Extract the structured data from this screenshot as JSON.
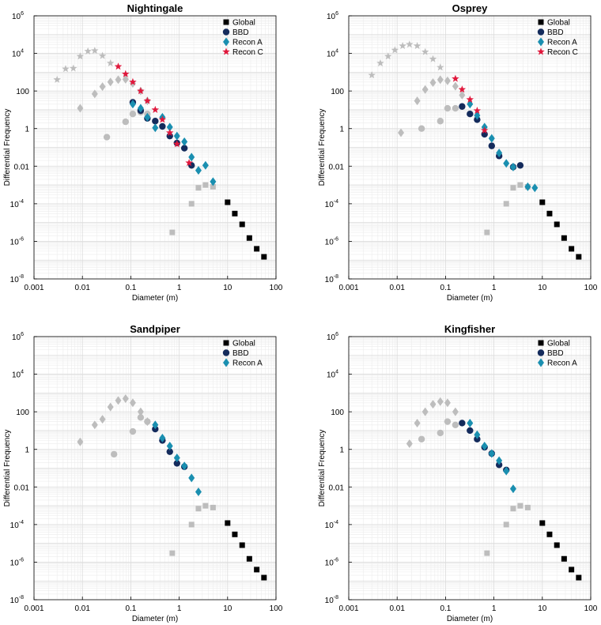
{
  "colors": {
    "global": "#000000",
    "bbd": "#142b5c",
    "recon_a": "#1a8fb0",
    "recon_c": "#e0183c",
    "gray_marker": "#bdbdbd"
  },
  "tick_labels": {
    "x": [
      "0.001",
      "0.01",
      "0.1",
      "1",
      "10",
      "100"
    ],
    "y": [
      {
        "base": "10",
        "exp": "-8"
      },
      {
        "base": "10",
        "exp": "-6"
      },
      {
        "base": "10",
        "exp": "-4"
      },
      {
        "base": "0.01",
        "exp": ""
      },
      {
        "base": "1",
        "exp": ""
      },
      {
        "base": "100",
        "exp": ""
      },
      {
        "base": "10",
        "exp": "4"
      },
      {
        "base": "10",
        "exp": "6"
      }
    ]
  },
  "chart_data": [
    {
      "type": "scatter",
      "title": "Nightingale",
      "xlabel": "Diameter (m)",
      "ylabel": "Differential Frequency",
      "xscale": "log",
      "yscale": "log",
      "xlim": [
        0.001,
        100
      ],
      "ylim": [
        1e-08,
        1000000.0
      ],
      "legend_position": "top-right",
      "series": [
        {
          "name": "gray-star",
          "legend": false,
          "marker": "star",
          "color": "gray",
          "x": [
            0.003,
            0.0045,
            0.0065,
            0.009,
            0.013,
            0.018,
            0.026,
            0.038
          ],
          "y": [
            400,
            1500,
            1600,
            7000,
            13000,
            14000,
            7500,
            3000
          ]
        },
        {
          "name": "gray-diamond",
          "legend": false,
          "marker": "diamond",
          "color": "gray",
          "x": [
            0.009,
            0.018,
            0.026,
            0.038,
            0.055,
            0.078,
            0.11,
            0.16,
            0.22
          ],
          "y": [
            12,
            70,
            170,
            300,
            400,
            420,
            250,
            100,
            30
          ]
        },
        {
          "name": "gray-circle",
          "legend": false,
          "marker": "circle",
          "color": "gray",
          "x": [
            0.032,
            0.078,
            0.11,
            0.16,
            0.22
          ],
          "y": [
            0.35,
            2.3,
            6,
            7.5,
            6
          ]
        },
        {
          "name": "gray-square",
          "legend": false,
          "marker": "square",
          "color": "gray",
          "x": [
            0.72,
            1.8,
            2.5,
            3.5,
            5
          ],
          "y": [
            3e-06,
            0.0001,
            0.0007,
            0.001,
            0.0008
          ]
        },
        {
          "name": "Global",
          "legend": true,
          "marker": "square",
          "color": "global",
          "x": [
            10,
            14.1,
            20,
            28.2,
            40,
            56.5
          ],
          "y": [
            0.00012,
            3e-05,
            8e-06,
            1.5e-06,
            4e-07,
            1.5e-07
          ]
        },
        {
          "name": "BBD",
          "legend": true,
          "marker": "circle",
          "color": "bbd",
          "x": [
            0.11,
            0.16,
            0.22,
            0.32,
            0.45,
            0.64,
            0.9,
            1.28,
            1.8
          ],
          "y": [
            25,
            9,
            3.5,
            2.5,
            1.3,
            0.4,
            0.17,
            0.09,
            0.011
          ]
        },
        {
          "name": "Recon A",
          "legend": true,
          "marker": "diamond",
          "color": "recon_a",
          "x": [
            0.11,
            0.16,
            0.22,
            0.32,
            0.45,
            0.64,
            0.9,
            1.28,
            1.8,
            2.5,
            3.5,
            5
          ],
          "y": [
            20,
            12,
            4,
            1.1,
            4,
            1.2,
            0.4,
            0.2,
            0.03,
            0.006,
            0.011,
            0.0015
          ]
        },
        {
          "name": "Recon C",
          "legend": true,
          "marker": "star",
          "color": "recon_c",
          "x": [
            0.055,
            0.078,
            0.11,
            0.16,
            0.22,
            0.32,
            0.45,
            0.64,
            0.9,
            1.6
          ],
          "y": [
            2000,
            800,
            300,
            100,
            30,
            10,
            3,
            0.6,
            0.15,
            0.015
          ]
        }
      ]
    },
    {
      "type": "scatter",
      "title": "Osprey",
      "xlabel": "Diameter (m)",
      "ylabel": "Differential Frequency",
      "xscale": "log",
      "yscale": "log",
      "xlim": [
        0.001,
        100
      ],
      "ylim": [
        1e-08,
        1000000.0
      ],
      "legend_position": "top-right",
      "series": [
        {
          "name": "gray-star",
          "legend": false,
          "marker": "star",
          "color": "gray",
          "x": [
            0.003,
            0.0045,
            0.0065,
            0.009,
            0.013,
            0.018,
            0.026,
            0.038,
            0.055,
            0.078
          ],
          "y": [
            700,
            3000,
            7000,
            15000,
            25000,
            30000,
            25000,
            12000,
            5000,
            1800
          ]
        },
        {
          "name": "gray-diamond",
          "legend": false,
          "marker": "diamond",
          "color": "gray",
          "x": [
            0.012,
            0.026,
            0.038,
            0.055,
            0.078,
            0.11,
            0.16,
            0.22
          ],
          "y": [
            0.6,
            30,
            120,
            280,
            400,
            350,
            180,
            60
          ]
        },
        {
          "name": "gray-circle",
          "legend": false,
          "marker": "circle",
          "color": "gray",
          "x": [
            0.032,
            0.078,
            0.11,
            0.16
          ],
          "y": [
            1,
            2.5,
            12,
            12
          ]
        },
        {
          "name": "gray-square",
          "legend": false,
          "marker": "square",
          "color": "gray",
          "x": [
            0.72,
            1.8,
            2.5,
            3.5,
            5
          ],
          "y": [
            3e-06,
            0.0001,
            0.0007,
            0.001,
            0.0008
          ]
        },
        {
          "name": "Global",
          "legend": true,
          "marker": "square",
          "color": "global",
          "x": [
            10,
            14.1,
            20,
            28.2,
            40,
            56.5
          ],
          "y": [
            0.00012,
            3e-05,
            8e-06,
            1.5e-06,
            4e-07,
            1.5e-07
          ]
        },
        {
          "name": "BBD",
          "legend": true,
          "marker": "circle",
          "color": "bbd",
          "x": [
            0.22,
            0.32,
            0.45,
            0.64,
            0.9,
            1.28,
            2.5,
            3.5
          ],
          "y": [
            15,
            6,
            3,
            0.5,
            0.12,
            0.035,
            0.009,
            0.011
          ]
        },
        {
          "name": "Recon A",
          "legend": true,
          "marker": "diamond",
          "color": "recon_a",
          "x": [
            0.32,
            0.45,
            0.64,
            0.9,
            1.28,
            1.8,
            2.5,
            5,
            7
          ],
          "y": [
            20,
            5,
            1.2,
            0.3,
            0.05,
            0.014,
            0.009,
            0.0008,
            0.0007
          ]
        },
        {
          "name": "Recon C",
          "legend": true,
          "marker": "star",
          "color": "recon_c",
          "x": [
            0.16,
            0.22,
            0.32,
            0.45,
            0.64
          ],
          "y": [
            450,
            120,
            35,
            9,
            0.8
          ]
        }
      ]
    },
    {
      "type": "scatter",
      "title": "Sandpiper",
      "xlabel": "Diameter (m)",
      "ylabel": "Differential Frequency",
      "xscale": "log",
      "yscale": "log",
      "xlim": [
        0.001,
        100
      ],
      "ylim": [
        1e-08,
        1000000.0
      ],
      "legend_position": "top-right",
      "series": [
        {
          "name": "gray-diamond",
          "legend": false,
          "marker": "diamond",
          "color": "gray",
          "x": [
            0.009,
            0.018,
            0.026,
            0.038,
            0.055,
            0.078,
            0.11,
            0.16,
            0.22
          ],
          "y": [
            2.5,
            20,
            40,
            180,
            400,
            500,
            300,
            100,
            30
          ]
        },
        {
          "name": "gray-circle",
          "legend": false,
          "marker": "circle",
          "color": "gray",
          "x": [
            0.045,
            0.11,
            0.16,
            0.22
          ],
          "y": [
            0.55,
            9,
            50,
            30
          ]
        },
        {
          "name": "gray-square",
          "legend": false,
          "marker": "square",
          "color": "gray",
          "x": [
            0.72,
            1.8,
            2.5,
            3.5,
            5
          ],
          "y": [
            3e-06,
            0.0001,
            0.0007,
            0.001,
            0.0008
          ]
        },
        {
          "name": "Global",
          "legend": true,
          "marker": "square",
          "color": "global",
          "x": [
            10,
            14.1,
            20,
            28.2,
            40,
            56.5
          ],
          "y": [
            0.00012,
            3e-05,
            8e-06,
            1.5e-06,
            4e-07,
            1.5e-07
          ]
        },
        {
          "name": "BBD",
          "legend": true,
          "marker": "circle",
          "color": "bbd",
          "x": [
            0.32,
            0.45,
            0.64,
            0.9,
            1.28
          ],
          "y": [
            12,
            3,
            0.75,
            0.18,
            0.12
          ]
        },
        {
          "name": "Recon A",
          "legend": true,
          "marker": "diamond",
          "color": "recon_a",
          "x": [
            0.32,
            0.45,
            0.64,
            0.9,
            1.28,
            1.8,
            2.5
          ],
          "y": [
            20,
            4,
            1.5,
            0.35,
            0.13,
            0.03,
            0.0055
          ]
        }
      ]
    },
    {
      "type": "scatter",
      "title": "Kingfisher",
      "xlabel": "Diameter (m)",
      "ylabel": "Differential Frequency",
      "xscale": "log",
      "yscale": "log",
      "xlim": [
        0.001,
        100
      ],
      "ylim": [
        1e-08,
        1000000.0
      ],
      "legend_position": "top-right",
      "series": [
        {
          "name": "gray-diamond",
          "legend": false,
          "marker": "diamond",
          "color": "gray",
          "x": [
            0.018,
            0.026,
            0.038,
            0.055,
            0.078,
            0.11,
            0.16
          ],
          "y": [
            2,
            25,
            100,
            250,
            350,
            300,
            100
          ]
        },
        {
          "name": "gray-circle",
          "legend": false,
          "marker": "circle",
          "color": "gray",
          "x": [
            0.032,
            0.078,
            0.11,
            0.16
          ],
          "y": [
            3.5,
            7.5,
            30,
            20
          ]
        },
        {
          "name": "gray-square",
          "legend": false,
          "marker": "square",
          "color": "gray",
          "x": [
            0.72,
            1.8,
            2.5,
            3.5,
            5
          ],
          "y": [
            3e-06,
            0.0001,
            0.0007,
            0.001,
            0.0008
          ]
        },
        {
          "name": "Global",
          "legend": true,
          "marker": "square",
          "color": "global",
          "x": [
            10,
            14.1,
            20,
            28.2,
            40,
            56.5
          ],
          "y": [
            0.00012,
            3e-05,
            8e-06,
            1.5e-06,
            4e-07,
            1.5e-07
          ]
        },
        {
          "name": "BBD",
          "legend": true,
          "marker": "circle",
          "color": "bbd",
          "x": [
            0.22,
            0.32,
            0.45,
            0.64,
            0.9,
            1.28,
            1.8
          ],
          "y": [
            25,
            10,
            3.5,
            1.3,
            0.6,
            0.15,
            0.08
          ]
        },
        {
          "name": "Recon A",
          "legend": true,
          "marker": "diamond",
          "color": "recon_a",
          "x": [
            0.32,
            0.45,
            0.64,
            0.9,
            1.28,
            1.8,
            2.5
          ],
          "y": [
            25,
            6,
            1.5,
            0.6,
            0.25,
            0.07,
            0.008
          ]
        }
      ]
    }
  ]
}
